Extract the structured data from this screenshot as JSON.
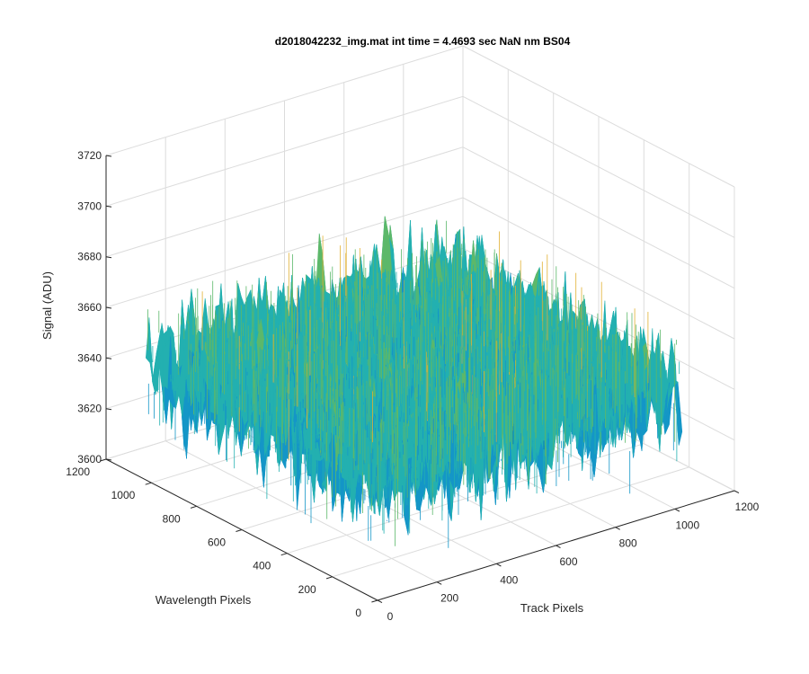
{
  "chart_data": {
    "type": "surface-3d",
    "title": "d2018042232_img.mat int time = 4.4693 sec  NaN nm BS04",
    "xlabel": "Track Pixels",
    "ylabel": "Wavelength Pixels",
    "zlabel": "Signal (ADU)",
    "xlim": [
      0,
      1200
    ],
    "ylim": [
      0,
      1200
    ],
    "zlim": [
      3600,
      3720
    ],
    "x_ticks": [
      0,
      200,
      400,
      600,
      800,
      1000,
      1200
    ],
    "y_ticks": [
      0,
      200,
      400,
      600,
      800,
      1000,
      1200
    ],
    "z_ticks": [
      3600,
      3620,
      3640,
      3660,
      3680,
      3700,
      3720
    ],
    "x_tick_labels": [
      "0",
      "200",
      "400",
      "600",
      "800",
      "1000",
      "1200"
    ],
    "y_tick_labels": [
      "0",
      "200",
      "400",
      "600",
      "800",
      "1000",
      "1200"
    ],
    "z_tick_labels": [
      "3600",
      "3620",
      "3640",
      "3660",
      "3680",
      "3700",
      "3720"
    ],
    "data_extent": {
      "x": [
        0,
        1024
      ],
      "y": [
        0,
        1024
      ]
    },
    "signal": {
      "mean": 3645,
      "min": 3610,
      "max": 3705
    },
    "grid": true,
    "colors": [
      "#0072bd",
      "#1496c7",
      "#23b0b0",
      "#5cb86a",
      "#e1b032",
      "#f0c040"
    ]
  }
}
